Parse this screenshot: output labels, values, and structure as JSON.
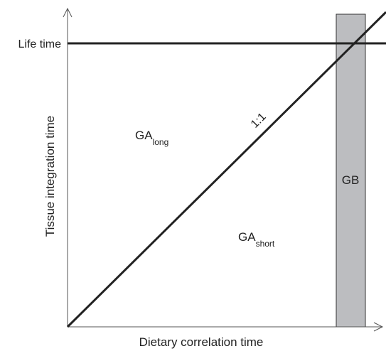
{
  "y_axis": {
    "label": "Tissue integration time",
    "reference": "Life time"
  },
  "x_axis": {
    "label": "Dietary correlation time"
  },
  "diagonal": {
    "label": "1:1"
  },
  "regions": [
    {
      "main": "GA",
      "sub": "long"
    },
    {
      "main": "GA",
      "sub": "short"
    },
    {
      "main": "GB"
    }
  ]
}
